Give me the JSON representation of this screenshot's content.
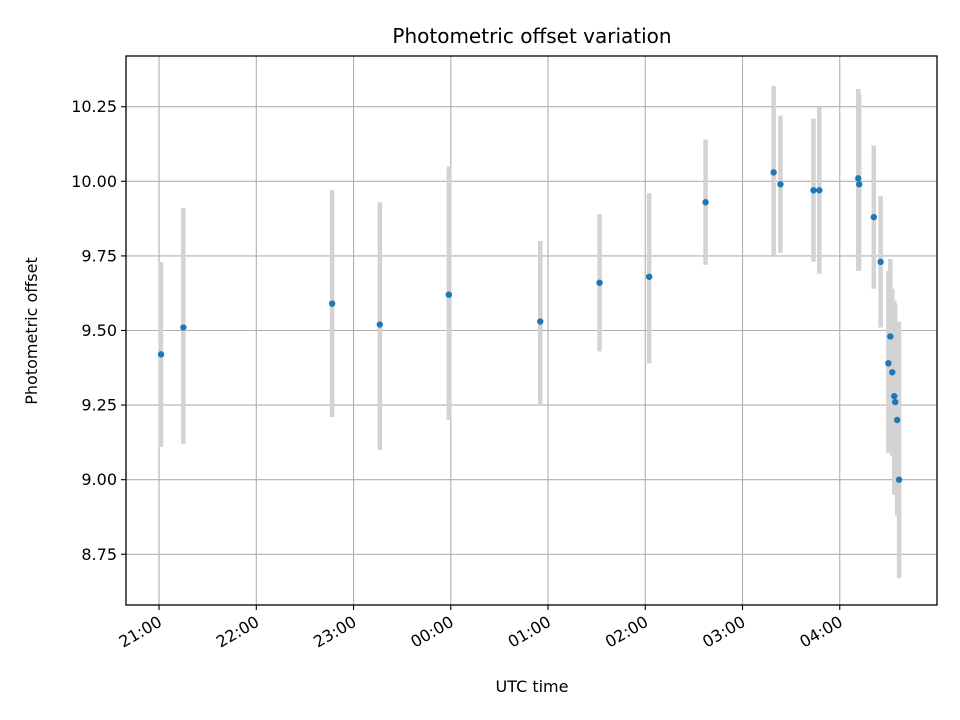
{
  "chart_data": {
    "type": "scatter",
    "title": "Photometric offset variation",
    "xlabel": "UTC time",
    "ylabel": "Photometric offset",
    "x_unit": "hours after 20:00 UTC (data axis: time of day)",
    "xlim_hours": [
      0.66,
      9.0
    ],
    "ylim": [
      8.58,
      10.42
    ],
    "x_ticks": [
      {
        "label": "21:00",
        "hour": 1.0
      },
      {
        "label": "22:00",
        "hour": 2.0
      },
      {
        "label": "23:00",
        "hour": 3.0
      },
      {
        "label": "00:00",
        "hour": 4.0
      },
      {
        "label": "01:00",
        "hour": 5.0
      },
      {
        "label": "02:00",
        "hour": 6.0
      },
      {
        "label": "03:00",
        "hour": 7.0
      },
      {
        "label": "04:00",
        "hour": 8.0
      }
    ],
    "y_ticks": [
      {
        "label": "8.75",
        "value": 8.75
      },
      {
        "label": "9.00",
        "value": 9.0
      },
      {
        "label": "9.25",
        "value": 9.25
      },
      {
        "label": "9.50",
        "value": 9.5
      },
      {
        "label": "9.75",
        "value": 9.75
      },
      {
        "label": "10.00",
        "value": 10.0
      },
      {
        "label": "10.25",
        "value": 10.25
      }
    ],
    "grid": true,
    "colors": {
      "points": "#1f77b4",
      "errorbars": "#d3d3d3",
      "grid": "#b0b0b0"
    },
    "points": [
      {
        "time": "21:01",
        "x": 1.02,
        "y": 9.42,
        "err_low": 9.11,
        "err_high": 9.73
      },
      {
        "time": "21:15",
        "x": 1.25,
        "y": 9.51,
        "err_low": 9.12,
        "err_high": 9.91
      },
      {
        "time": "22:47",
        "x": 2.78,
        "y": 9.59,
        "err_low": 9.21,
        "err_high": 9.97
      },
      {
        "time": "23:16",
        "x": 3.27,
        "y": 9.52,
        "err_low": 9.1,
        "err_high": 9.93
      },
      {
        "time": "23:59",
        "x": 3.98,
        "y": 9.62,
        "err_low": 9.2,
        "err_high": 10.05
      },
      {
        "time": "00:55",
        "x": 4.92,
        "y": 9.53,
        "err_low": 9.25,
        "err_high": 9.8
      },
      {
        "time": "01:32",
        "x": 5.53,
        "y": 9.66,
        "err_low": 9.43,
        "err_high": 9.89
      },
      {
        "time": "02:02",
        "x": 6.04,
        "y": 9.68,
        "err_low": 9.39,
        "err_high": 9.96
      },
      {
        "time": "02:37",
        "x": 6.62,
        "y": 9.93,
        "err_low": 9.72,
        "err_high": 10.14
      },
      {
        "time": "03:19",
        "x": 7.32,
        "y": 10.03,
        "err_low": 9.75,
        "err_high": 10.32
      },
      {
        "time": "03:23",
        "x": 7.39,
        "y": 9.99,
        "err_low": 9.76,
        "err_high": 10.22
      },
      {
        "time": "03:44",
        "x": 7.73,
        "y": 9.97,
        "err_low": 9.73,
        "err_high": 10.21
      },
      {
        "time": "03:47",
        "x": 7.79,
        "y": 9.97,
        "err_low": 9.69,
        "err_high": 10.25
      },
      {
        "time": "04:11",
        "x": 8.19,
        "y": 10.01,
        "err_low": 9.7,
        "err_high": 10.31
      },
      {
        "time": "04:12",
        "x": 8.2,
        "y": 9.99,
        "err_low": 9.7,
        "err_high": 10.29
      },
      {
        "time": "04:21",
        "x": 8.35,
        "y": 9.88,
        "err_low": 9.64,
        "err_high": 10.12
      },
      {
        "time": "04:25",
        "x": 8.42,
        "y": 9.73,
        "err_low": 9.51,
        "err_high": 9.95
      },
      {
        "time": "04:30",
        "x": 8.5,
        "y": 9.39,
        "err_low": 9.09,
        "err_high": 9.7
      },
      {
        "time": "04:31",
        "x": 8.52,
        "y": 9.48,
        "err_low": 9.22,
        "err_high": 9.74
      },
      {
        "time": "04:32",
        "x": 8.54,
        "y": 9.36,
        "err_low": 9.08,
        "err_high": 9.64
      },
      {
        "time": "04:33",
        "x": 8.56,
        "y": 9.28,
        "err_low": 8.95,
        "err_high": 9.6
      },
      {
        "time": "04:34",
        "x": 8.57,
        "y": 9.26,
        "err_low": 8.95,
        "err_high": 9.59
      },
      {
        "time": "04:35",
        "x": 8.59,
        "y": 9.2,
        "err_low": 8.88,
        "err_high": 9.52
      },
      {
        "time": "04:36",
        "x": 8.61,
        "y": 9.0,
        "err_low": 8.67,
        "err_high": 9.53
      }
    ]
  }
}
